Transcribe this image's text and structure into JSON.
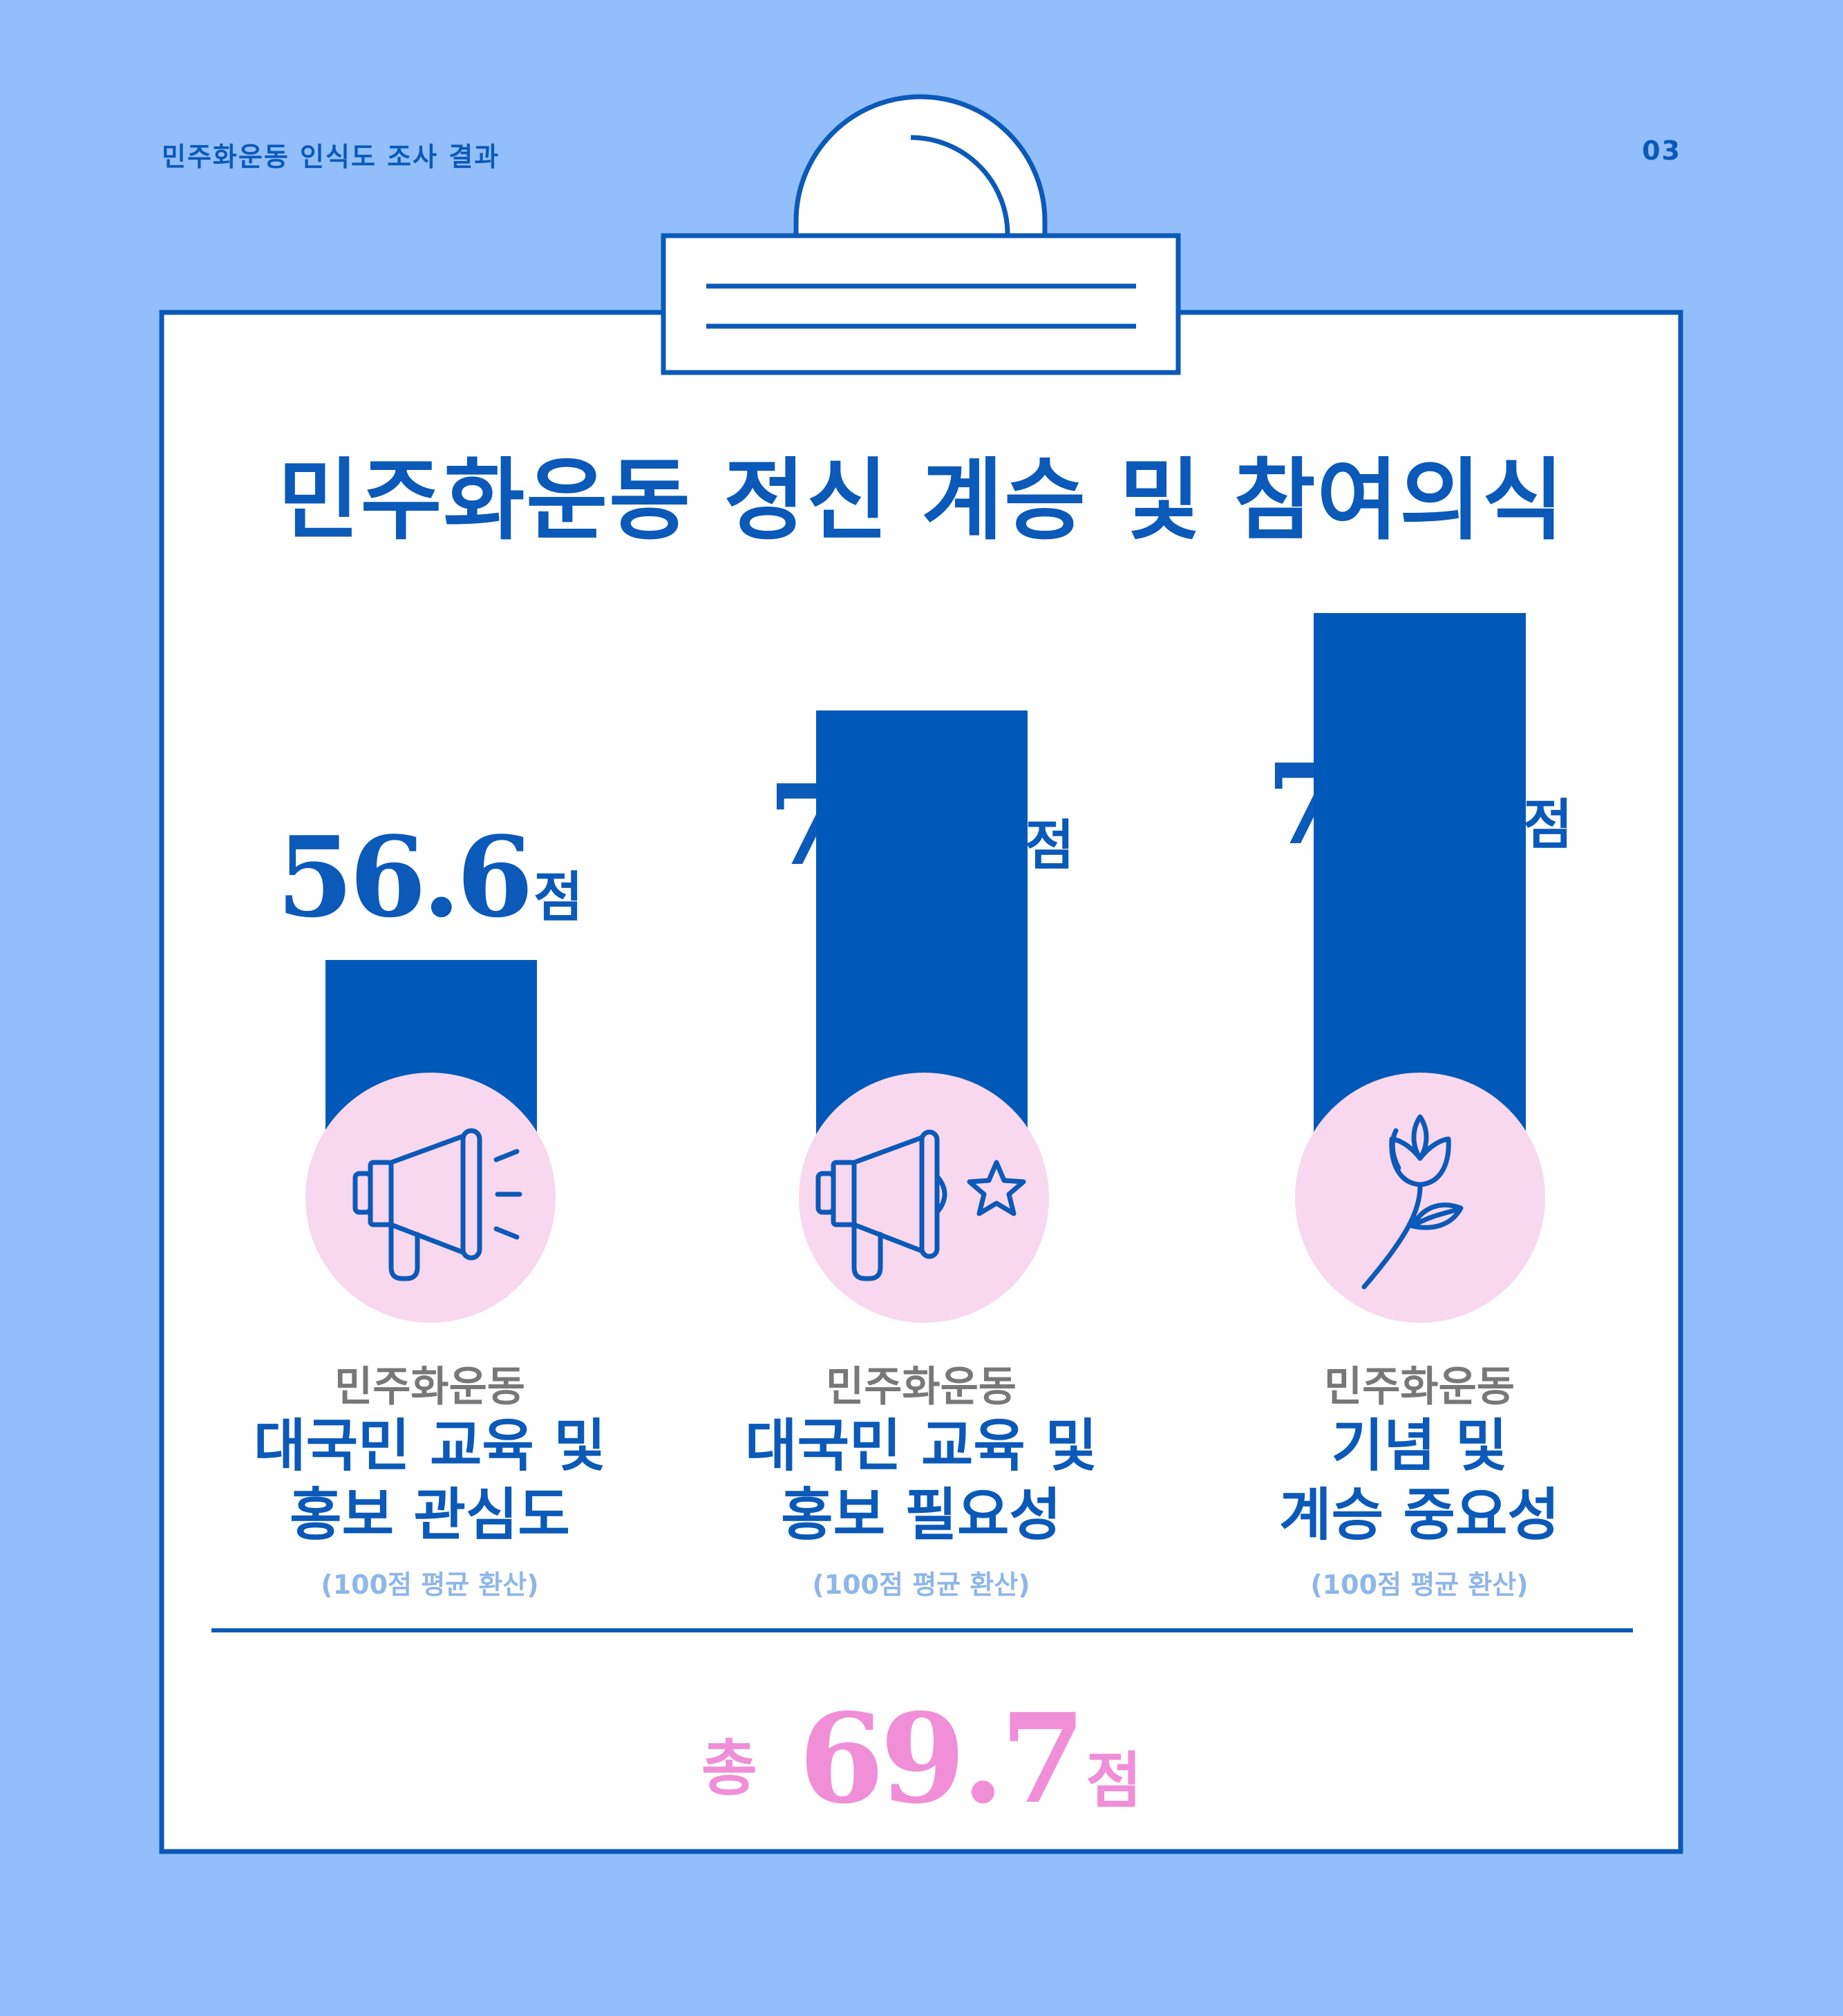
{
  "header": {
    "survey_title": "민주화운동 인식도 조사 결과",
    "page_number": "03"
  },
  "main": {
    "title": "민주화운동 정신 계승 및 참여의식"
  },
  "chart_data": {
    "type": "bar",
    "title": "민주화운동 정신 계승 및 참여의식",
    "unit": "점",
    "categories": [
      {
        "prefix": "민주화운동",
        "name_line1": "대국민 교육 및",
        "name_line2": "홍보 관심도",
        "note": "(100점 평균 환산)",
        "icon": "megaphone-icon"
      },
      {
        "prefix": "민주화운동",
        "name_line1": "대국민 교육 및",
        "name_line2": "홍보 필요성",
        "note": "(100점 평균 환산)",
        "icon": "megaphone-star-icon"
      },
      {
        "prefix": "민주화운동",
        "name_line1": "기념 및",
        "name_line2": "계승 중요성",
        "note": "(100점 평균 환산)",
        "icon": "flower-icon"
      }
    ],
    "values": [
      56.6,
      72.8,
      79.1
    ],
    "value_labels": [
      "56.6",
      "72.8",
      "79.1"
    ],
    "total": {
      "label": "총",
      "value": "69.7",
      "unit": "점"
    }
  },
  "colors": {
    "background": "#92bffc",
    "primary": "#0b59b8",
    "bar": "#0059b8",
    "badge": "#f8d8ee",
    "accent_total": "#f08ed8",
    "muted_text": "#787878",
    "note_text": "#8fb6e8"
  }
}
